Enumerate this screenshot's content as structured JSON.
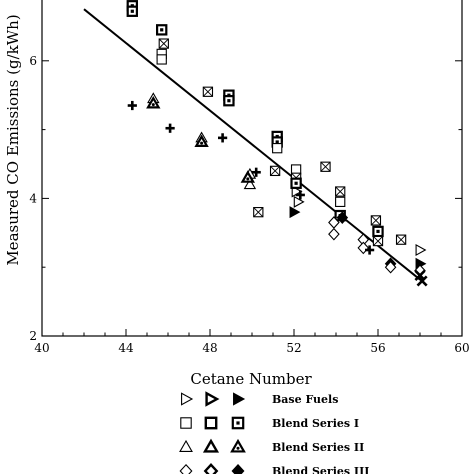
{
  "chart_data": {
    "type": "scatter",
    "title": "",
    "xlabel": "Cetane Number",
    "ylabel": "Measured CO Emissions (g/kWh)",
    "xlim": [
      40,
      60
    ],
    "ylim": [
      2,
      7
    ],
    "xticks": [
      40,
      44,
      48,
      52,
      56,
      60
    ],
    "yticks": [
      2,
      4,
      6
    ],
    "grid": false,
    "legend_position": "below",
    "trendline": {
      "x": [
        42,
        58
      ],
      "y": [
        6.75,
        2.82
      ]
    },
    "series": [
      {
        "name": "Base Fuels",
        "marker": "triangle-right",
        "points": [
          {
            "x": 52.1,
            "y": 4.1,
            "style": "outline"
          },
          {
            "x": 52.2,
            "y": 3.95,
            "style": "outline"
          },
          {
            "x": 58.0,
            "y": 3.25,
            "style": "outline"
          },
          {
            "x": 52.0,
            "y": 3.8,
            "style": "filled"
          },
          {
            "x": 58.0,
            "y": 3.05,
            "style": "filled"
          }
        ]
      },
      {
        "name": "Blend Series I",
        "marker": "square",
        "points": [
          {
            "x": 44.3,
            "y": 6.8,
            "style": "dot"
          },
          {
            "x": 44.3,
            "y": 6.72,
            "style": "dot"
          },
          {
            "x": 45.7,
            "y": 6.45,
            "style": "dot"
          },
          {
            "x": 45.8,
            "y": 6.25,
            "style": "cross"
          },
          {
            "x": 45.7,
            "y": 6.1,
            "style": "outline"
          },
          {
            "x": 45.7,
            "y": 6.02,
            "style": "outline"
          },
          {
            "x": 47.9,
            "y": 5.55,
            "style": "cross"
          },
          {
            "x": 48.9,
            "y": 5.5,
            "style": "dot"
          },
          {
            "x": 48.9,
            "y": 5.42,
            "style": "dot"
          },
          {
            "x": 51.2,
            "y": 4.9,
            "style": "dot"
          },
          {
            "x": 51.2,
            "y": 4.82,
            "style": "dot"
          },
          {
            "x": 51.2,
            "y": 4.73,
            "style": "outline"
          },
          {
            "x": 51.1,
            "y": 4.4,
            "style": "cross"
          },
          {
            "x": 50.3,
            "y": 3.8,
            "style": "cross"
          },
          {
            "x": 52.1,
            "y": 4.42,
            "style": "outline"
          },
          {
            "x": 52.1,
            "y": 4.3,
            "style": "cross"
          },
          {
            "x": 52.1,
            "y": 4.22,
            "style": "dot"
          },
          {
            "x": 53.5,
            "y": 4.46,
            "style": "cross"
          },
          {
            "x": 54.2,
            "y": 4.1,
            "style": "cross"
          },
          {
            "x": 54.2,
            "y": 3.95,
            "style": "outline"
          },
          {
            "x": 54.2,
            "y": 3.75,
            "style": "dot"
          },
          {
            "x": 55.9,
            "y": 3.68,
            "style": "cross"
          },
          {
            "x": 56.0,
            "y": 3.52,
            "style": "dot"
          },
          {
            "x": 56.0,
            "y": 3.38,
            "style": "cross"
          },
          {
            "x": 57.1,
            "y": 3.4,
            "style": "cross"
          }
        ]
      },
      {
        "name": "Blend Series II",
        "marker": "triangle-up",
        "points": [
          {
            "x": 45.3,
            "y": 5.45,
            "style": "outline"
          },
          {
            "x": 45.3,
            "y": 5.38,
            "style": "dot"
          },
          {
            "x": 47.6,
            "y": 4.88,
            "style": "outline"
          },
          {
            "x": 47.6,
            "y": 4.82,
            "style": "dot"
          },
          {
            "x": 49.9,
            "y": 4.35,
            "style": "outline"
          },
          {
            "x": 49.9,
            "y": 4.2,
            "style": "outline"
          },
          {
            "x": 49.8,
            "y": 4.3,
            "style": "dot"
          }
        ]
      },
      {
        "name": "Blend Series III",
        "marker": "diamond",
        "points": [
          {
            "x": 53.9,
            "y": 3.65,
            "style": "outline"
          },
          {
            "x": 53.9,
            "y": 3.48,
            "style": "outline"
          },
          {
            "x": 54.3,
            "y": 3.72,
            "style": "filled"
          },
          {
            "x": 55.3,
            "y": 3.4,
            "style": "outline"
          },
          {
            "x": 55.3,
            "y": 3.28,
            "style": "outline"
          },
          {
            "x": 56.6,
            "y": 3.05,
            "style": "filled"
          },
          {
            "x": 56.6,
            "y": 3.0,
            "style": "outline"
          },
          {
            "x": 58.0,
            "y": 2.95,
            "style": "outline"
          }
        ]
      },
      {
        "name": "",
        "marker": "plus",
        "points": [
          {
            "x": 44.3,
            "y": 5.35
          },
          {
            "x": 46.1,
            "y": 5.02
          },
          {
            "x": 48.6,
            "y": 4.88
          },
          {
            "x": 50.2,
            "y": 4.38
          },
          {
            "x": 52.3,
            "y": 4.05
          },
          {
            "x": 55.6,
            "y": 3.25
          }
        ]
      },
      {
        "name": "",
        "marker": "x",
        "points": [
          {
            "x": 58.0,
            "y": 2.88
          },
          {
            "x": 58.1,
            "y": 2.8
          }
        ]
      }
    ],
    "legend": [
      {
        "label": "Base Fuels",
        "marker": "triangle-right",
        "styles": [
          "outline",
          "outline-heavy",
          "filled"
        ]
      },
      {
        "label": "Blend Series I",
        "marker": "square",
        "styles": [
          "outline",
          "outline-heavy",
          "dot"
        ]
      },
      {
        "label": "Blend Series II",
        "marker": "triangle-up",
        "styles": [
          "outline",
          "outline-heavy",
          "dot"
        ]
      },
      {
        "label": "Blend Series III",
        "marker": "diamond",
        "styles": [
          "outline",
          "outline-heavy",
          "filled"
        ]
      }
    ]
  }
}
